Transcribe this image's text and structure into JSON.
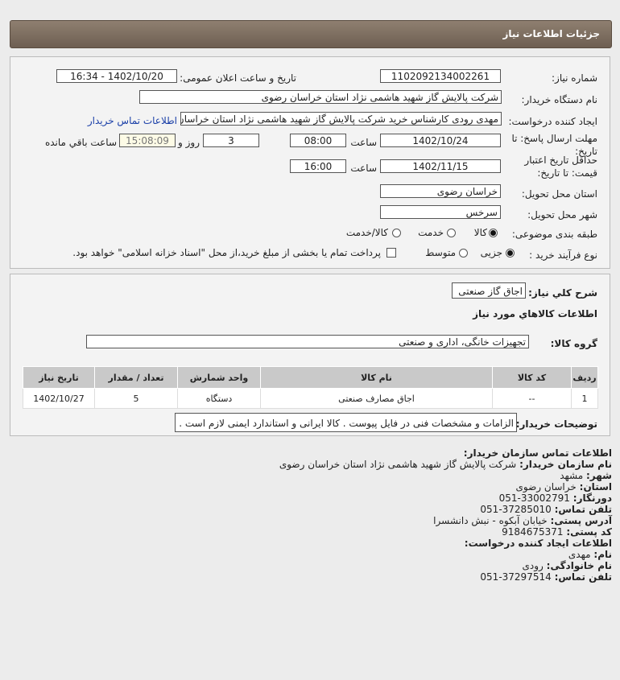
{
  "header": {
    "title": "جزئیات اطلاعات نیاز"
  },
  "form": {
    "need_number_label": "شماره نیاز:",
    "need_number": "1102092134002261",
    "announce_label": "تاریخ و ساعت اعلان عمومی:",
    "announce_value": "1402/10/20 - 16:34",
    "buyer_label": "نام دستگاه خریدار:",
    "buyer_value": "شرکت پالایش گاز شهید هاشمی نژاد   استان خراسان رضوی",
    "creator_label": "ایجاد کننده درخواست:",
    "creator_value": "مهدی رودی کارشناس خرید شرکت پالایش گاز شهید هاشمی نژاد   استان خراسان رضوی",
    "contact_link": "اطلاعات تماس خریدار",
    "deadline_label": "مهلت ارسال پاسخ: تا تاریخ:",
    "deadline_date": "1402/10/24",
    "time_label": "ساعت",
    "deadline_time": "08:00",
    "days": "3",
    "days_label": "روز و",
    "remaining": "15:08:09",
    "remaining_label": "ساعت باقي مانده",
    "validity_label": "حداقل تاریخ اعتبار قیمت: تا تاریخ:",
    "validity_date": "1402/11/15",
    "validity_time": "16:00",
    "province_label": "استان محل تحویل:",
    "province": "خراسان رضوی",
    "city_label": "شهر محل تحویل:",
    "city": "سرخس",
    "category_label": "طبقه بندی موضوعی:",
    "category_options": [
      "کالا",
      "خدمت",
      "کالا/خدمت"
    ],
    "process_label": "نوع فرآیند خرید :",
    "process_options": [
      "جزیی",
      "متوسط"
    ],
    "payment_note": "پرداخت تمام یا بخشی از مبلغ خرید،از محل \"اسناد خزانه اسلامی\" خواهد بود."
  },
  "summary": {
    "desc_label": "شرح کلي نياز:",
    "desc": "اجاق گاز صنعتی",
    "goods_title": "اطلاعات کالاهاي مورد نياز",
    "group_label": "گروه کالا:",
    "group": "تجهیزات خانگی، اداری و صنعتی",
    "columns": [
      "رديف",
      "کد کالا",
      "نام کالا",
      "واحد شمارش",
      "تعداد / مقدار",
      "تاریخ نیاز"
    ],
    "rows": [
      [
        "1",
        "--",
        "اجاق مصارف صنعتی",
        "دستگاه",
        "5",
        "1402/10/27"
      ]
    ],
    "notes_label": "توضیحات خریدار:",
    "notes": "الزامات و مشخصات فنی در فایل پیوست . کالا ایرانی و استاندارد ایمنی لازم است ."
  },
  "contact": {
    "title": "اطلاعات تماس سازمان خریدار:",
    "org_label": "نام سازمان خریدار:",
    "org": "شرکت پالایش گاز شهید هاشمی نژاد استان خراسان رضوی",
    "city_label": "شهر:",
    "city": "مشهد",
    "province_label": "استان:",
    "province": "خراسان رضوی",
    "fax_label": "دورنگار:",
    "fax": "33002791-051",
    "phone_label": "تلفن تماس:",
    "phone": "37285010-051",
    "address_label": "آدرس پستی:",
    "address": "خیابان آبکوه - نبش دانشسرا",
    "postal_label": "کد پستی:",
    "postal": "9184675371",
    "creator_title": "اطلاعات ایجاد کننده درخواست:",
    "name_label": "نام:",
    "name": "مهدی",
    "family_label": "نام خانوادگی:",
    "family": "رودی",
    "cphone_label": "تلفن تماس:",
    "cphone": "37297514-051"
  }
}
